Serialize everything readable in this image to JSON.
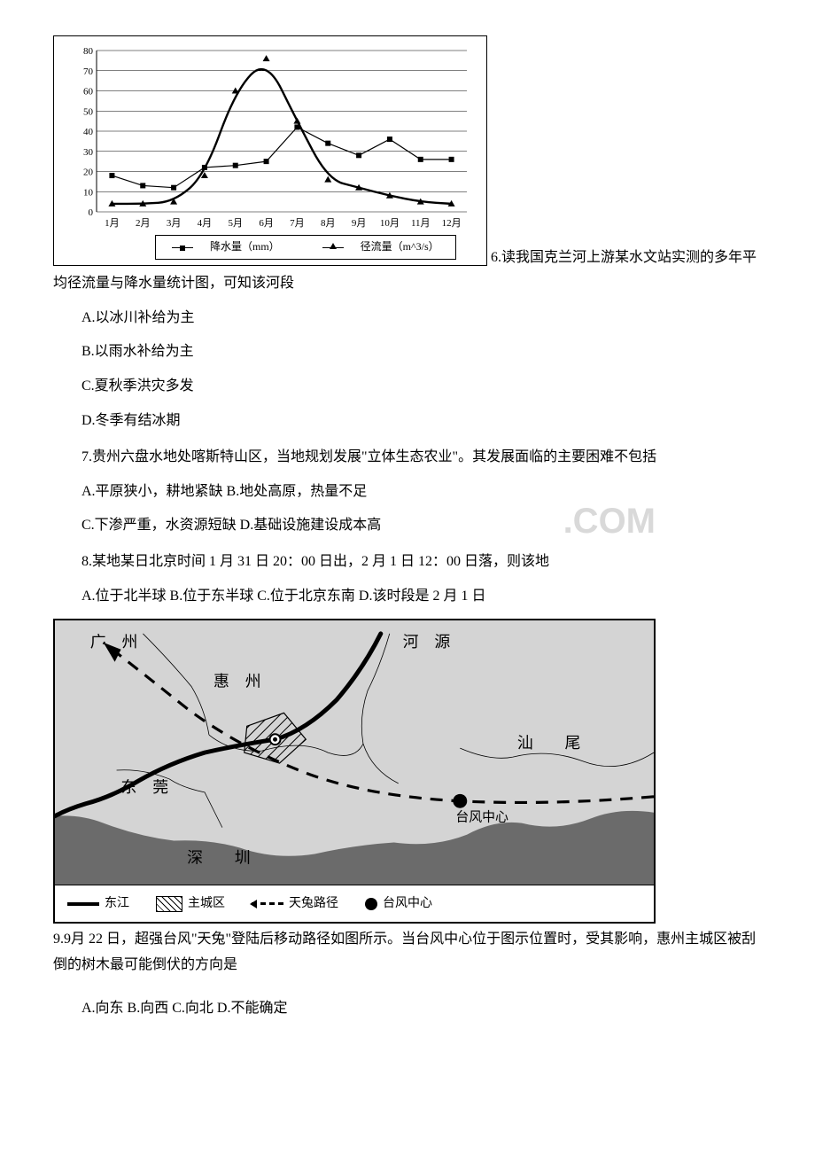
{
  "chart": {
    "type": "line",
    "months": [
      "1月",
      "2月",
      "3月",
      "4月",
      "5月",
      "6月",
      "7月",
      "8月",
      "9月",
      "10月",
      "11月",
      "12月"
    ],
    "ylim_min": 0,
    "ylim_max": 80,
    "ytick_step": 10,
    "grid_color": "#000000",
    "series": {
      "precip": {
        "label": "降水量（mm）",
        "marker": "square",
        "color": "#000000",
        "values": [
          18,
          13,
          12,
          22,
          23,
          25,
          42,
          34,
          28,
          36,
          26,
          26
        ]
      },
      "runoff": {
        "label": "径流量（m^3/s）",
        "marker": "triangle",
        "color": "#000000",
        "values": [
          4,
          4,
          5,
          18,
          60,
          76,
          45,
          16,
          12,
          8,
          5,
          4
        ]
      }
    }
  },
  "q6": {
    "number": "6.",
    "stem": "读我国克兰河上游某水文站实测的多年平均径流量与降水量统计图，可知该河段",
    "opts": {
      "a": "A.以冰川补给为主",
      "b": "B.以雨水补给为主",
      "c": "C.夏秋季洪灾多发",
      "d": "D.冬季有结冰期"
    }
  },
  "q7": {
    "stem": "7.贵州六盘水地处喀斯特山区，当地规划发展\"立体生态农业\"。其发展面临的主要困难不包括",
    "opts": {
      "ab": "A.平原狭小，耕地紧缺 B.地处高原，热量不足",
      "cd": "C.下渗严重，水资源短缺 D.基础设施建设成本高"
    },
    "watermark": ".COM"
  },
  "q8": {
    "stem": "8.某地某日北京时间 1 月 31 日 20：00 日出，2 月 1 日 12：00 日落，则该地",
    "opts": "A.位于北半球 B.位于东半球 C.位于北京东南 D.该时段是 2 月 1 日"
  },
  "map": {
    "labels": {
      "guangzhou": "广　州",
      "heyuan": "河　源",
      "huizhou": "惠　州",
      "shanwei": "汕　　尾",
      "dongguan": "东　莞",
      "shenzhen": "深　　圳",
      "typhoon_center": "台风中心"
    },
    "legend": {
      "river": "东江",
      "urban": "主城区",
      "path": "天兔路径",
      "center": "台风中心"
    },
    "colors": {
      "land": "#d4d4d4",
      "sea": "#6b6b6b",
      "river": "#000000",
      "border": "#000000"
    }
  },
  "q9": {
    "number": "9.9",
    "stem": "月 22 日，超强台风\"天兔\"登陆后移动路径如图所示。当台风中心位于图示位置时，受其影响，惠州主城区被刮倒的树木最可能倒伏的方向是",
    "opts": "A.向东 B.向西 C.向北 D.不能确定"
  }
}
